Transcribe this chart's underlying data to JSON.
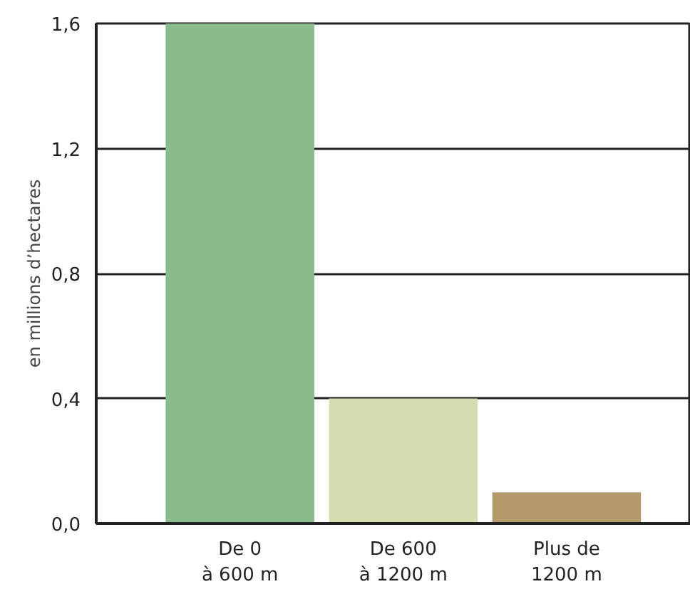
{
  "chart_data": {
    "type": "bar",
    "ylabel": "en millions d’hectares",
    "categories": [
      "De 0\nà 600 m",
      "De 600\nà 1200 m",
      "Plus de\n1200 m"
    ],
    "values": [
      1.6,
      0.4,
      0.1
    ],
    "colors": [
      "#8abb8c",
      "#d5deb0",
      "#b49a6a"
    ],
    "ylim": [
      0,
      1.6
    ],
    "yticks": [
      {
        "value": 0,
        "label": "0,0"
      },
      {
        "value": 0.4,
        "label": "0,4"
      },
      {
        "value": 0.8,
        "label": "0,8"
      },
      {
        "value": 1.2,
        "label": "1,2"
      },
      {
        "value": 1.6,
        "label": "1,6"
      }
    ],
    "grid": "y"
  }
}
